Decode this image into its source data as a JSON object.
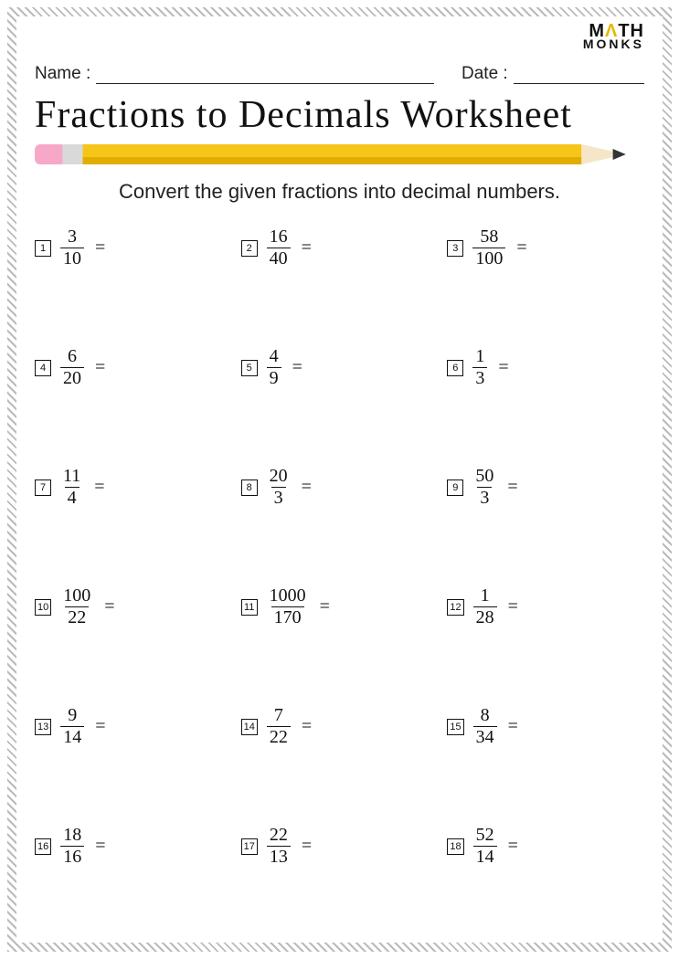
{
  "logo": {
    "line1_pre": "M",
    "line1_a": "Λ",
    "line1_post": "TH",
    "line2": "MONKS"
  },
  "meta": {
    "name_label": "Name :",
    "date_label": "Date :"
  },
  "title": "Fractions to Decimals  Worksheet",
  "instruction": "Convert the given fractions into decimal numbers.",
  "pencil": {
    "body_color": "#f5c518",
    "body_shade": "#e0ad00",
    "eraser_color": "#f7a8c8",
    "ferrule_color": "#d9d9d9",
    "tip_wood": "#f5e6c8",
    "tip_lead": "#333333"
  },
  "problems": [
    {
      "n": "1",
      "num": "3",
      "den": "10"
    },
    {
      "n": "2",
      "num": "16",
      "den": "40"
    },
    {
      "n": "3",
      "num": "58",
      "den": "100"
    },
    {
      "n": "4",
      "num": "6",
      "den": "20"
    },
    {
      "n": "5",
      "num": "4",
      "den": "9"
    },
    {
      "n": "6",
      "num": "1",
      "den": "3"
    },
    {
      "n": "7",
      "num": "11",
      "den": "4"
    },
    {
      "n": "8",
      "num": "20",
      "den": "3"
    },
    {
      "n": "9",
      "num": "50",
      "den": "3"
    },
    {
      "n": "10",
      "num": "100",
      "den": "22"
    },
    {
      "n": "11",
      "num": "1000",
      "den": "170"
    },
    {
      "n": "12",
      "num": "1",
      "den": "28"
    },
    {
      "n": "13",
      "num": "9",
      "den": "14"
    },
    {
      "n": "14",
      "num": "7",
      "den": "22"
    },
    {
      "n": "15",
      "num": "8",
      "den": "34"
    },
    {
      "n": "16",
      "num": "18",
      "den": "16"
    },
    {
      "n": "17",
      "num": "22",
      "den": "13"
    },
    {
      "n": "18",
      "num": "52",
      "den": "14"
    }
  ],
  "equals": "="
}
